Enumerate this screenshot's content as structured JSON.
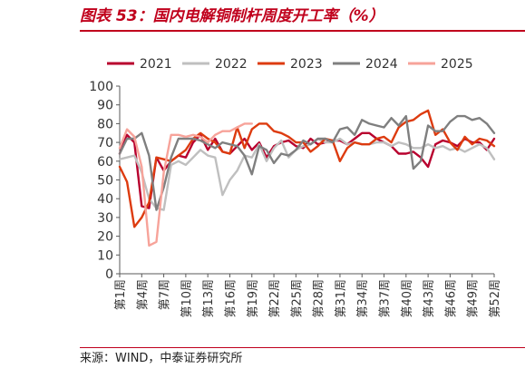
{
  "header": {
    "title": "图表 53：国内电解铜制杆周度开工率（%）"
  },
  "footer": {
    "source": "来源：WIND，中泰证券研究所"
  },
  "colors": {
    "accent": "#c0001c"
  },
  "chart_data": {
    "type": "line",
    "title": "图表 53：国内电解铜制杆周度开工率（%）",
    "xlabel": "",
    "ylabel": "",
    "ylim": [
      0,
      100
    ],
    "yticks": [
      0,
      10,
      20,
      30,
      40,
      50,
      60,
      70,
      80,
      90,
      100
    ],
    "legend_position": "top",
    "grid": false,
    "x": [
      1,
      2,
      3,
      4,
      5,
      6,
      7,
      8,
      9,
      10,
      11,
      12,
      13,
      14,
      15,
      16,
      17,
      18,
      19,
      20,
      21,
      22,
      23,
      24,
      25,
      26,
      27,
      28,
      29,
      30,
      31,
      32,
      33,
      34,
      35,
      36,
      37,
      38,
      39,
      40,
      41,
      42,
      43,
      44,
      45,
      46,
      47,
      48,
      49,
      50,
      51,
      52
    ],
    "x_tick_labels": [
      "第1周",
      "第4周",
      "第7周",
      "第10周",
      "第13周",
      "第16周",
      "第19周",
      "第22周",
      "第25周",
      "第28周",
      "第31周",
      "第34周",
      "第37周",
      "第40周",
      "第43周",
      "第46周",
      "第49周",
      "第52周"
    ],
    "x_tick_weeks": [
      1,
      4,
      7,
      10,
      13,
      16,
      19,
      22,
      25,
      28,
      31,
      34,
      37,
      40,
      43,
      46,
      49,
      52
    ],
    "series": [
      {
        "name": "2021",
        "color": "#b8002e",
        "values": [
          64,
          74,
          70,
          36,
          35,
          62,
          55,
          60,
          63,
          62,
          70,
          74,
          66,
          72,
          65,
          64,
          68,
          72,
          66,
          70,
          62,
          68,
          70,
          71,
          68,
          67,
          72,
          69,
          70,
          71,
          71,
          69,
          72,
          75,
          75,
          72,
          70,
          68,
          64,
          64,
          65,
          62,
          57,
          69,
          71,
          70,
          68,
          72,
          70,
          70,
          66,
          72
        ]
      },
      {
        "name": "2022",
        "color": "#bfbfbf",
        "values": [
          61,
          62,
          63,
          54,
          40,
          35,
          34,
          58,
          60,
          58,
          62,
          66,
          63,
          62,
          42,
          50,
          55,
          63,
          62,
          69,
          60,
          67,
          71,
          62,
          66,
          68,
          69,
          72,
          70,
          70,
          72,
          69,
          70,
          69,
          69,
          70,
          70,
          68,
          70,
          69,
          67,
          67,
          69,
          67,
          68,
          66,
          67,
          65,
          67,
          69,
          67,
          61
        ]
      },
      {
        "name": "2023",
        "color": "#dd3b0f",
        "values": [
          57,
          49,
          25,
          30,
          38,
          62,
          61,
          60,
          63,
          66,
          72,
          75,
          72,
          70,
          65,
          64,
          78,
          67,
          77,
          80,
          80,
          76,
          75,
          73,
          70,
          70,
          65,
          68,
          72,
          71,
          60,
          67,
          70,
          69,
          69,
          72,
          73,
          70,
          78,
          81,
          82,
          85,
          87,
          74,
          77,
          70,
          66,
          73,
          69,
          72,
          71,
          68
        ]
      },
      {
        "name": "2024",
        "color": "#7f7f7f",
        "values": [
          64,
          72,
          72,
          75,
          63,
          34,
          46,
          62,
          72,
          72,
          72,
          71,
          69,
          67,
          70,
          69,
          68,
          63,
          53,
          68,
          66,
          59,
          64,
          63,
          66,
          71,
          69,
          72,
          72,
          70,
          77,
          78,
          74,
          82,
          80,
          79,
          78,
          83,
          79,
          84,
          56,
          60,
          79,
          76,
          76,
          81,
          84,
          84,
          82,
          83,
          80,
          75
        ]
      },
      {
        "name": "2025",
        "color": "#f7a39a",
        "values": [
          67,
          77,
          73,
          57,
          15,
          17,
          54,
          74,
          74,
          73,
          74,
          73,
          70,
          74,
          76,
          76,
          78,
          80,
          80,
          null,
          null,
          null,
          null,
          null,
          null,
          null,
          null,
          null,
          null,
          null,
          null,
          null,
          null,
          null,
          null,
          null,
          null,
          null,
          null,
          null,
          null,
          null,
          null,
          null,
          null,
          null,
          null,
          null,
          null,
          null,
          null,
          null
        ]
      }
    ]
  }
}
